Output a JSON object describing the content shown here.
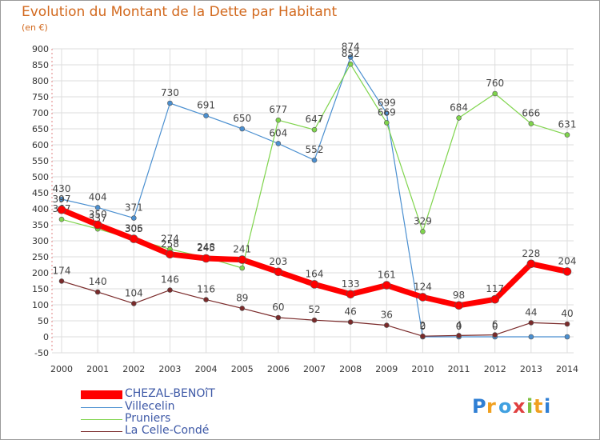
{
  "chart_data": {
    "type": "line",
    "title": "Evolution du Montant de la Dette par Habitant",
    "subtitle": "(en €)",
    "x": [
      "2000",
      "2001",
      "2002",
      "2003",
      "2004",
      "2005",
      "2006",
      "2007",
      "2008",
      "2009",
      "2010",
      "2011",
      "2012",
      "2013",
      "2014"
    ],
    "ylim": [
      -50,
      900
    ],
    "yticks": [
      -50,
      0,
      50,
      100,
      150,
      200,
      250,
      300,
      350,
      400,
      450,
      500,
      550,
      600,
      650,
      700,
      750,
      800,
      850,
      900
    ],
    "grid": true,
    "legend_position": "bottom-left",
    "series": [
      {
        "name": "Villecelin",
        "color": "#4a8fd0",
        "values": [
          430,
          404,
          371,
          730,
          691,
          650,
          604,
          552,
          874,
          699,
          0,
          0,
          0,
          0,
          0
        ],
        "labels": [
          "430",
          "404",
          "371",
          "730",
          "691",
          "650",
          "604",
          "552",
          "874",
          "699",
          "0",
          "0",
          "0",
          "",
          ""
        ]
      },
      {
        "name": "Pruniers",
        "color": "#7fd44c",
        "values": [
          367,
          337,
          305,
          274,
          248,
          215,
          677,
          647,
          852,
          669,
          329,
          684,
          760,
          666,
          631
        ],
        "labels": [
          "367",
          "337",
          "305",
          "274",
          "248",
          "",
          "677",
          "647",
          "852",
          "669",
          "329",
          "684",
          "760",
          "666",
          "631"
        ]
      },
      {
        "name": "CHEZAL-BENOîT",
        "color": "#ff0000",
        "values": [
          397,
          350,
          306,
          258,
          245,
          241,
          203,
          164,
          133,
          161,
          124,
          98,
          117,
          228,
          204
        ],
        "labels": [
          "397",
          "350",
          "306",
          "258",
          "245",
          "241",
          "203",
          "164",
          "133",
          "161",
          "124",
          "98",
          "117",
          "228",
          "204"
        ]
      },
      {
        "name": "La Celle-Condé",
        "color": "#7a2a2a",
        "values": [
          174,
          140,
          104,
          146,
          116,
          89,
          60,
          52,
          46,
          36,
          2,
          4,
          6,
          44,
          40
        ],
        "labels": [
          "174",
          "140",
          "104",
          "146",
          "116",
          "89",
          "60",
          "52",
          "46",
          "36",
          "2",
          "4",
          "6",
          "44",
          "40"
        ]
      }
    ]
  },
  "legend": {
    "items": [
      {
        "label": "CHEZAL-BENOîT",
        "color": "#ff0000"
      },
      {
        "label": "Villecelin",
        "color": "#4a8fd0"
      },
      {
        "label": "Pruniers",
        "color": "#7fd44c"
      },
      {
        "label": "La Celle-Condé",
        "color": "#7a2a2a"
      }
    ]
  },
  "brand": {
    "text": "Proxiti"
  }
}
